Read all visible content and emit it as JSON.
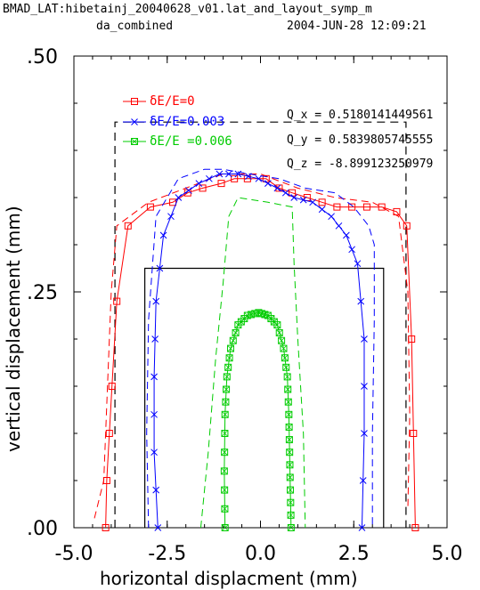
{
  "header": {
    "line1": "BMAD_LAT:hibetainj_20040628_v01.lat_and_layout_symp_m",
    "line2_left": "da_combined",
    "line2_right": "2004-JUN-28  12:09:21"
  },
  "chart_data": {
    "type": "line",
    "title": "",
    "xlabel": "horizontal displacment (mm)",
    "ylabel": "vertical displacement (mm)",
    "xlim": [
      -5.0,
      5.0
    ],
    "ylim": [
      0.0,
      0.5
    ],
    "xticks": [
      "-5.0",
      "-2.5",
      "0.0",
      "2.5",
      "5.0"
    ],
    "yticks": [
      ".00",
      ".25",
      ".50"
    ],
    "grid": false,
    "legend_position": "top-left",
    "legend": [
      {
        "label": "δE/E=0",
        "color": "#ff0000",
        "marker": "square"
      },
      {
        "label": "δE/E=0.003",
        "color": "#0000ff",
        "marker": "x"
      },
      {
        "label": "δE/E =0.006",
        "color": "#00cc00",
        "marker": "square-x"
      }
    ],
    "annotations": [
      "Q_x  =   0.5180141449561",
      "Q_y  =   0.5839805745555",
      "Q_z  =  -8.899123250979"
    ],
    "series": [
      {
        "color": "#ff0000",
        "style": "solid-markers",
        "marker": "square",
        "x": [
          -4.15,
          -4.12,
          -4.05,
          -3.98,
          -3.85,
          -3.55,
          -2.95,
          -2.35,
          -1.95,
          -1.55,
          -1.05,
          -0.7,
          -0.35,
          0.15,
          0.5,
          0.85,
          1.25,
          1.65,
          2.05,
          2.45,
          2.85,
          3.25,
          3.65,
          3.92,
          4.05,
          4.1,
          4.15
        ],
        "y": [
          0.0,
          0.05,
          0.1,
          0.15,
          0.24,
          0.32,
          0.34,
          0.345,
          0.355,
          0.36,
          0.365,
          0.37,
          0.37,
          0.37,
          0.36,
          0.355,
          0.35,
          0.345,
          0.34,
          0.34,
          0.34,
          0.34,
          0.335,
          0.32,
          0.2,
          0.1,
          0.0
        ]
      },
      {
        "color": "#ff0000",
        "style": "dashed",
        "x": [
          -4.45,
          -4.2,
          -4.1,
          -4.0,
          -3.85,
          -3.0,
          -2.0,
          -1.0,
          0.0,
          1.0,
          2.0,
          3.0,
          3.7,
          3.95,
          4.0,
          3.95
        ],
        "y": [
          0.01,
          0.05,
          0.15,
          0.25,
          0.32,
          0.345,
          0.36,
          0.375,
          0.375,
          0.36,
          0.35,
          0.345,
          0.33,
          0.25,
          0.12,
          0.02
        ]
      },
      {
        "color": "#0000ff",
        "style": "solid-markers",
        "marker": "x",
        "x": [
          -2.75,
          -2.85,
          -2.85,
          -2.8,
          -2.6,
          -2.2,
          -1.65,
          -1.1,
          -0.6,
          -0.05,
          0.45,
          0.9,
          1.4,
          1.9,
          2.3,
          2.6,
          2.78,
          2.78,
          2.72
        ],
        "y": [
          0.0,
          0.08,
          0.16,
          0.24,
          0.31,
          0.35,
          0.365,
          0.375,
          0.375,
          0.37,
          0.36,
          0.35,
          0.345,
          0.33,
          0.31,
          0.28,
          0.2,
          0.1,
          0.0
        ],
        "markers": "sparse"
      },
      {
        "color": "#0000ff",
        "style": "dashed",
        "x": [
          -3.0,
          -3.05,
          -3.0,
          -2.8,
          -2.2,
          -1.5,
          -1.0,
          -0.3,
          0.5,
          1.2,
          2.0,
          2.5,
          2.9,
          3.05,
          3.05,
          3.0,
          3.0
        ],
        "y": [
          0.0,
          0.1,
          0.22,
          0.33,
          0.37,
          0.38,
          0.38,
          0.375,
          0.37,
          0.36,
          0.355,
          0.34,
          0.32,
          0.3,
          0.22,
          0.1,
          0.0
        ]
      },
      {
        "color": "#00cc00",
        "style": "solid-markers",
        "marker": "square-x",
        "x": [
          -0.95,
          -0.97,
          -0.95,
          -0.9,
          -0.8,
          -0.6,
          -0.35,
          -0.05,
          0.2,
          0.45,
          0.62,
          0.72,
          0.76,
          0.78,
          0.8,
          0.82
        ],
        "y": [
          0.0,
          0.06,
          0.12,
          0.16,
          0.19,
          0.215,
          0.225,
          0.228,
          0.225,
          0.215,
          0.19,
          0.16,
          0.12,
          0.08,
          0.04,
          0.0
        ]
      },
      {
        "color": "#00cc00",
        "style": "dashed",
        "x": [
          -1.6,
          -1.4,
          -1.2,
          -1.0,
          -0.85,
          -0.6,
          0.2,
          0.85,
          0.9,
          1.0,
          1.15,
          1.2
        ],
        "y": [
          0.0,
          0.08,
          0.18,
          0.26,
          0.33,
          0.35,
          0.345,
          0.34,
          0.28,
          0.2,
          0.1,
          0.0
        ]
      }
    ],
    "apertures": [
      {
        "style": "dashed",
        "x0": -3.9,
        "x1": 3.9,
        "y0": 0.0,
        "y1": 0.43
      },
      {
        "style": "solid",
        "x0": -3.1,
        "x1": 3.3,
        "y0": 0.0,
        "y1": 0.275
      }
    ]
  }
}
